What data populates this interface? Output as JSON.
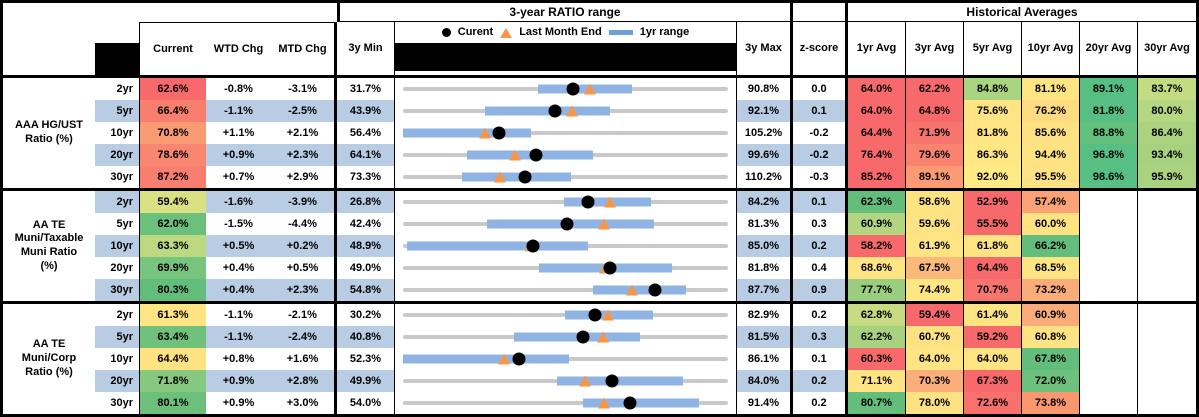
{
  "header": {
    "titles": {
      "ratio_range": "3-year RATIO range",
      "historical": "Historical Averages"
    },
    "columns": {
      "current": "Current",
      "wtd": "WTD Chg",
      "mtd": "MTD Chg",
      "min": "3y Min",
      "max": "3y Max",
      "z": "z-score",
      "avgs": [
        "1yr Avg",
        "3yr Avg",
        "5yr Avg",
        "10yr Avg",
        "20yr Avg",
        "30yr Avg"
      ]
    },
    "legend": {
      "current": "Curent",
      "last_month": "Last Month End",
      "range": "1yr range"
    }
  },
  "colors": {
    "stripe": "#B8CCE4",
    "bar": "#8FB4E3",
    "track": "#C9C9C9",
    "triangle": "#F79646",
    "dot": "#000000",
    "legend_bar": "#6D9FD8"
  },
  "chart_data": {
    "type": "table",
    "embedded_chart_type": "bullet-range",
    "sections": [
      {
        "label": "AAA HG/UST\nRatio (%)",
        "rows": [
          {
            "tenor": "2yr",
            "current": "62.6%",
            "current_bg": "#F8696B",
            "wtd": "-0.8%",
            "mtd": "-3.1%",
            "min": "31.7%",
            "max": "90.8%",
            "z": "0.0",
            "range": {
              "min": 31.7,
              "max": 90.8,
              "current": 62.6,
              "last_month": 65.7,
              "yr_lo": 56.2,
              "yr_hi": 73.4
            },
            "avgs": [
              {
                "v": "64.0%",
                "bg": "#F8696B"
              },
              {
                "v": "62.2%",
                "bg": "#F8696B"
              },
              {
                "v": "84.8%",
                "bg": "#A9D480"
              },
              {
                "v": "81.1%",
                "bg": "#FFE483"
              },
              {
                "v": "89.1%",
                "bg": "#57BE84"
              },
              {
                "v": "83.7%",
                "bg": "#C3DC82"
              }
            ]
          },
          {
            "tenor": "5yr",
            "current": "66.4%",
            "current_bg": "#F87E70",
            "wtd": "-1.1%",
            "mtd": "-2.5%",
            "min": "43.9%",
            "max": "92.1%",
            "z": "0.1",
            "range": {
              "min": 43.9,
              "max": 92.1,
              "current": 66.4,
              "last_month": 68.9,
              "yr_lo": 56.1,
              "yr_hi": 74.6
            },
            "avgs": [
              {
                "v": "64.0%",
                "bg": "#F8696B"
              },
              {
                "v": "64.8%",
                "bg": "#F8696B"
              },
              {
                "v": "75.6%",
                "bg": "#FFE483"
              },
              {
                "v": "76.2%",
                "bg": "#FEDB80"
              },
              {
                "v": "81.8%",
                "bg": "#57BE84"
              },
              {
                "v": "80.0%",
                "bg": "#B5D781"
              }
            ]
          },
          {
            "tenor": "10yr",
            "current": "70.8%",
            "current_bg": "#FA9B73",
            "wtd": "+1.1%",
            "mtd": "+2.1%",
            "min": "56.4%",
            "max": "105.2%",
            "z": "-0.2",
            "range": {
              "min": 56.4,
              "max": 105.2,
              "current": 70.8,
              "last_month": 68.7,
              "yr_lo": 56.4,
              "yr_hi": 75.6
            },
            "avgs": [
              {
                "v": "64.4%",
                "bg": "#F8696B"
              },
              {
                "v": "71.9%",
                "bg": "#F8756E"
              },
              {
                "v": "81.8%",
                "bg": "#FFE583"
              },
              {
                "v": "85.6%",
                "bg": "#FEE183"
              },
              {
                "v": "88.8%",
                "bg": "#63C07D"
              },
              {
                "v": "86.4%",
                "bg": "#ABD37F"
              }
            ]
          },
          {
            "tenor": "20yr",
            "current": "78.6%",
            "current_bg": "#F98670",
            "wtd": "+0.9%",
            "mtd": "+2.3%",
            "min": "64.1%",
            "max": "99.6%",
            "z": "-0.2",
            "range": {
              "min": 64.1,
              "max": 99.6,
              "current": 78.6,
              "last_month": 76.3,
              "yr_lo": 71.1,
              "yr_hi": 84.8
            },
            "avgs": [
              {
                "v": "76.4%",
                "bg": "#F8696B"
              },
              {
                "v": "79.6%",
                "bg": "#F9836F"
              },
              {
                "v": "86.3%",
                "bg": "#FFE784"
              },
              {
                "v": "94.4%",
                "bg": "#FFE383"
              },
              {
                "v": "96.8%",
                "bg": "#57BE84"
              },
              {
                "v": "93.4%",
                "bg": "#A7D17F"
              }
            ]
          },
          {
            "tenor": "30yr",
            "current": "87.2%",
            "current_bg": "#F87F70",
            "wtd": "+0.7%",
            "mtd": "+2.9%",
            "min": "73.3%",
            "max": "110.2%",
            "z": "-0.3",
            "range": {
              "min": 73.3,
              "max": 110.2,
              "current": 87.2,
              "last_month": 84.3,
              "yr_lo": 80.0,
              "yr_hi": 92.4
            },
            "avgs": [
              {
                "v": "85.2%",
                "bg": "#F8696B"
              },
              {
                "v": "89.1%",
                "bg": "#FA9B73"
              },
              {
                "v": "92.0%",
                "bg": "#FFEB84"
              },
              {
                "v": "95.5%",
                "bg": "#FEE283"
              },
              {
                "v": "98.6%",
                "bg": "#57BE84"
              },
              {
                "v": "95.9%",
                "bg": "#AAD27F"
              }
            ]
          }
        ]
      },
      {
        "label": "AA TE\nMuni/Taxable\nMuni Ratio\n(%)",
        "rows": [
          {
            "tenor": "2yr",
            "current": "59.4%",
            "current_bg": "#D9E182",
            "wtd": "-1.6%",
            "mtd": "-3.9%",
            "min": "26.8%",
            "max": "84.2%",
            "z": "0.1",
            "range": {
              "min": 26.8,
              "max": 84.2,
              "current": 59.4,
              "last_month": 63.3,
              "yr_lo": 55.3,
              "yr_hi": 70.6
            },
            "avgs": [
              {
                "v": "62.3%",
                "bg": "#63BE7B"
              },
              {
                "v": "58.6%",
                "bg": "#FFE383"
              },
              {
                "v": "52.9%",
                "bg": "#F8696B"
              },
              {
                "v": "57.4%",
                "bg": "#FBA276"
              },
              null,
              null
            ]
          },
          {
            "tenor": "5yr",
            "current": "62.0%",
            "current_bg": "#6BC07B",
            "wtd": "-1.5%",
            "mtd": "-4.4%",
            "min": "42.4%",
            "max": "81.3%",
            "z": "0.3",
            "range": {
              "min": 42.4,
              "max": 81.3,
              "current": 62.0,
              "last_month": 66.4,
              "yr_lo": 52.4,
              "yr_hi": 72.5
            },
            "avgs": [
              {
                "v": "60.9%",
                "bg": "#B4D580"
              },
              {
                "v": "59.6%",
                "bg": "#FFE283"
              },
              {
                "v": "55.5%",
                "bg": "#F8696B"
              },
              {
                "v": "60.0%",
                "bg": "#FFE383"
              },
              null,
              null
            ]
          },
          {
            "tenor": "10yr",
            "current": "63.3%",
            "current_bg": "#BCD880",
            "wtd": "+0.5%",
            "mtd": "+0.2%",
            "min": "48.9%",
            "max": "85.0%",
            "z": "0.2",
            "range": {
              "min": 48.9,
              "max": 85.0,
              "current": 63.3,
              "last_month": 63.1,
              "yr_lo": 49.3,
              "yr_hi": 69.5
            },
            "avgs": [
              {
                "v": "58.2%",
                "bg": "#F8696B"
              },
              {
                "v": "61.9%",
                "bg": "#FFE483"
              },
              {
                "v": "61.8%",
                "bg": "#FFE483"
              },
              {
                "v": "66.2%",
                "bg": "#63BE7B"
              },
              null,
              null
            ]
          },
          {
            "tenor": "20yr",
            "current": "69.9%",
            "current_bg": "#77C47D",
            "wtd": "+0.4%",
            "mtd": "+0.5%",
            "min": "49.0%",
            "max": "81.8%",
            "z": "0.4",
            "range": {
              "min": 49.0,
              "max": 81.8,
              "current": 69.9,
              "last_month": 69.4,
              "yr_lo": 62.7,
              "yr_hi": 76.2
            },
            "avgs": [
              {
                "v": "68.6%",
                "bg": "#FFE483"
              },
              {
                "v": "67.5%",
                "bg": "#FBBA7B"
              },
              {
                "v": "64.4%",
                "bg": "#F8696B"
              },
              {
                "v": "68.5%",
                "bg": "#FFE483"
              },
              null,
              null
            ]
          },
          {
            "tenor": "30yr",
            "current": "80.3%",
            "current_bg": "#63BE7B",
            "wtd": "+0.4%",
            "mtd": "+2.3%",
            "min": "54.8%",
            "max": "87.7%",
            "z": "0.9",
            "range": {
              "min": 54.8,
              "max": 87.7,
              "current": 80.3,
              "last_month": 78.0,
              "yr_lo": 74.0,
              "yr_hi": 83.4
            },
            "avgs": [
              {
                "v": "77.7%",
                "bg": "#9ACE7E"
              },
              {
                "v": "74.4%",
                "bg": "#FFE684"
              },
              {
                "v": "70.7%",
                "bg": "#F8756E"
              },
              {
                "v": "73.2%",
                "bg": "#FBAD79"
              },
              null,
              null
            ]
          }
        ]
      },
      {
        "label": "AA TE\nMuni/Corp\nRatio (%)",
        "rows": [
          {
            "tenor": "2yr",
            "current": "61.3%",
            "current_bg": "#FFE483",
            "wtd": "-1.1%",
            "mtd": "-2.1%",
            "min": "30.2%",
            "max": "82.9%",
            "z": "0.2",
            "range": {
              "min": 30.2,
              "max": 82.9,
              "current": 61.3,
              "last_month": 63.4,
              "yr_lo": 56.4,
              "yr_hi": 70.8
            },
            "avgs": [
              {
                "v": "62.8%",
                "bg": "#C7DB82"
              },
              {
                "v": "59.4%",
                "bg": "#F8696B"
              },
              {
                "v": "61.4%",
                "bg": "#FFE483"
              },
              {
                "v": "60.9%",
                "bg": "#FBAB79"
              },
              null,
              null
            ]
          },
          {
            "tenor": "5yr",
            "current": "63.4%",
            "current_bg": "#70C17C",
            "wtd": "-1.1%",
            "mtd": "-2.4%",
            "min": "40.8%",
            "max": "81.5%",
            "z": "0.3",
            "range": {
              "min": 40.8,
              "max": 81.5,
              "current": 63.4,
              "last_month": 65.8,
              "yr_lo": 54.7,
              "yr_hi": 70.5
            },
            "avgs": [
              {
                "v": "62.2%",
                "bg": "#A8D27F"
              },
              {
                "v": "60.7%",
                "bg": "#FFE383"
              },
              {
                "v": "59.2%",
                "bg": "#F8696B"
              },
              {
                "v": "60.8%",
                "bg": "#FFE383"
              },
              null,
              null
            ]
          },
          {
            "tenor": "10yr",
            "current": "64.4%",
            "current_bg": "#FFE383",
            "wtd": "+0.8%",
            "mtd": "+1.6%",
            "min": "52.3%",
            "max": "86.1%",
            "z": "0.1",
            "range": {
              "min": 52.3,
              "max": 86.1,
              "current": 64.4,
              "last_month": 62.8,
              "yr_lo": 52.3,
              "yr_hi": 69.6
            },
            "avgs": [
              {
                "v": "60.3%",
                "bg": "#F8696B"
              },
              {
                "v": "64.0%",
                "bg": "#FFE483"
              },
              {
                "v": "64.0%",
                "bg": "#FFE483"
              },
              {
                "v": "67.8%",
                "bg": "#63BE7B"
              },
              null,
              null
            ]
          },
          {
            "tenor": "20yr",
            "current": "71.8%",
            "current_bg": "#85C87E",
            "wtd": "+0.9%",
            "mtd": "+2.8%",
            "min": "49.9%",
            "max": "84.0%",
            "z": "0.2",
            "range": {
              "min": 49.9,
              "max": 84.0,
              "current": 71.8,
              "last_month": 69.0,
              "yr_lo": 66.1,
              "yr_hi": 79.3
            },
            "avgs": [
              {
                "v": "71.1%",
                "bg": "#FFE483"
              },
              {
                "v": "70.3%",
                "bg": "#FBAE79"
              },
              {
                "v": "67.3%",
                "bg": "#F8696B"
              },
              {
                "v": "72.0%",
                "bg": "#6EC17C"
              },
              null,
              null
            ]
          },
          {
            "tenor": "30yr",
            "current": "80.1%",
            "current_bg": "#6DC07C",
            "wtd": "+0.9%",
            "mtd": "+3.0%",
            "min": "54.0%",
            "max": "91.4%",
            "z": "0.2",
            "range": {
              "min": 54.0,
              "max": 91.4,
              "current": 80.1,
              "last_month": 77.1,
              "yr_lo": 74.7,
              "yr_hi": 88.1
            },
            "avgs": [
              {
                "v": "80.7%",
                "bg": "#63BE7B"
              },
              {
                "v": "78.0%",
                "bg": "#FEE183"
              },
              {
                "v": "72.6%",
                "bg": "#F8716D"
              },
              {
                "v": "73.8%",
                "bg": "#F9976F"
              },
              null,
              null
            ]
          }
        ]
      }
    ]
  }
}
